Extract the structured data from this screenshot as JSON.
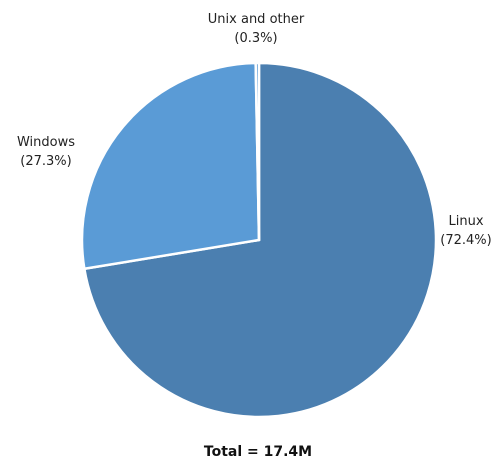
{
  "chart_data": {
    "type": "pie",
    "categories": [
      "Linux",
      "Windows",
      "Unix and other"
    ],
    "values": [
      72.4,
      27.3,
      0.3
    ],
    "percent_labels": [
      "(72.4%)",
      "(27.3%)",
      "(0.3%)"
    ],
    "colors": [
      "#4b7fb0",
      "#5a9bd6",
      "#5a9bd6"
    ],
    "total_label": "Total = 17.4M"
  }
}
